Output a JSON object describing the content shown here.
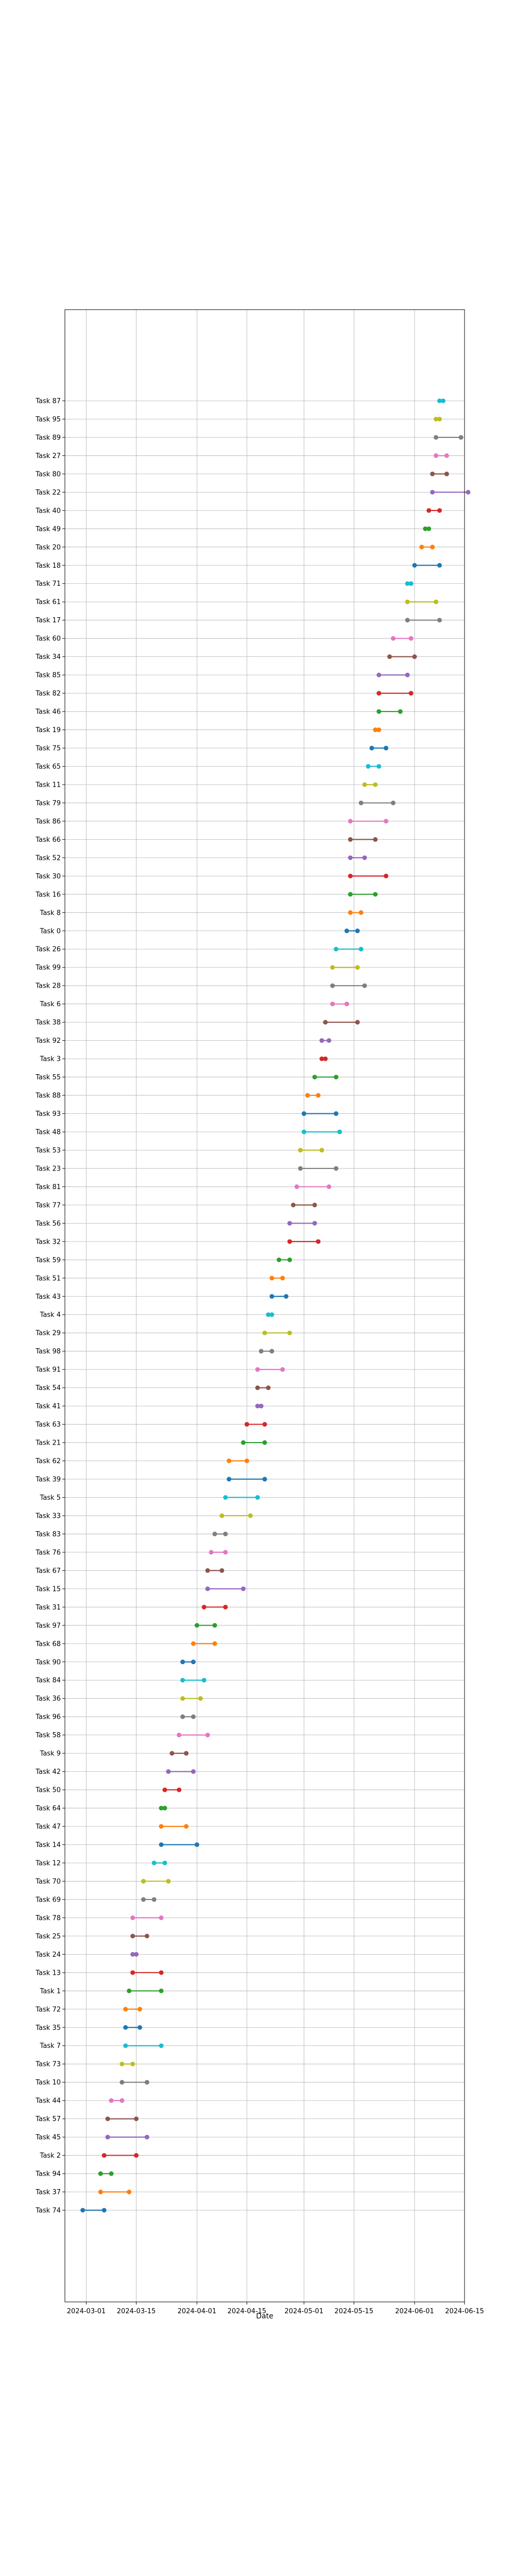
{
  "chart_data": {
    "type": "line",
    "xlabel": "Date",
    "title": "",
    "grid": true,
    "x_ticks": [
      "2024-03-01",
      "2024-03-15",
      "2024-04-01",
      "2024-04-15",
      "2024-05-01",
      "2024-05-15",
      "2024-06-01",
      "2024-06-15"
    ],
    "xlim": [
      "2024-02-24",
      "2024-06-15"
    ],
    "colors": [
      "#1f77b4",
      "#ff7f0e",
      "#2ca02c",
      "#d62728",
      "#9467bd",
      "#8c564b",
      "#e377c2",
      "#7f7f7f",
      "#bcbd22",
      "#17becf"
    ],
    "tasks": [
      {
        "name": "Task 74",
        "start": "2024-02-29",
        "end": "2024-03-06"
      },
      {
        "name": "Task 37",
        "start": "2024-03-05",
        "end": "2024-03-13"
      },
      {
        "name": "Task 94",
        "start": "2024-03-05",
        "end": "2024-03-08"
      },
      {
        "name": "Task 2",
        "start": "2024-03-06",
        "end": "2024-03-15"
      },
      {
        "name": "Task 45",
        "start": "2024-03-07",
        "end": "2024-03-18"
      },
      {
        "name": "Task 57",
        "start": "2024-03-07",
        "end": "2024-03-15"
      },
      {
        "name": "Task 44",
        "start": "2024-03-08",
        "end": "2024-03-11"
      },
      {
        "name": "Task 10",
        "start": "2024-03-11",
        "end": "2024-03-18"
      },
      {
        "name": "Task 73",
        "start": "2024-03-11",
        "end": "2024-03-14"
      },
      {
        "name": "Task 7",
        "start": "2024-03-12",
        "end": "2024-03-22"
      },
      {
        "name": "Task 35",
        "start": "2024-03-12",
        "end": "2024-03-16"
      },
      {
        "name": "Task 72",
        "start": "2024-03-12",
        "end": "2024-03-16"
      },
      {
        "name": "Task 1",
        "start": "2024-03-13",
        "end": "2024-03-22"
      },
      {
        "name": "Task 13",
        "start": "2024-03-14",
        "end": "2024-03-22"
      },
      {
        "name": "Task 24",
        "start": "2024-03-14",
        "end": "2024-03-15"
      },
      {
        "name": "Task 25",
        "start": "2024-03-14",
        "end": "2024-03-18"
      },
      {
        "name": "Task 78",
        "start": "2024-03-14",
        "end": "2024-03-22"
      },
      {
        "name": "Task 69",
        "start": "2024-03-17",
        "end": "2024-03-20"
      },
      {
        "name": "Task 70",
        "start": "2024-03-17",
        "end": "2024-03-24"
      },
      {
        "name": "Task 12",
        "start": "2024-03-20",
        "end": "2024-03-23"
      },
      {
        "name": "Task 14",
        "start": "2024-03-22",
        "end": "2024-04-01"
      },
      {
        "name": "Task 47",
        "start": "2024-03-22",
        "end": "2024-03-29"
      },
      {
        "name": "Task 64",
        "start": "2024-03-22",
        "end": "2024-03-23"
      },
      {
        "name": "Task 50",
        "start": "2024-03-23",
        "end": "2024-03-27"
      },
      {
        "name": "Task 42",
        "start": "2024-03-24",
        "end": "2024-03-31"
      },
      {
        "name": "Task 9",
        "start": "2024-03-25",
        "end": "2024-03-29"
      },
      {
        "name": "Task 58",
        "start": "2024-03-27",
        "end": "2024-04-04"
      },
      {
        "name": "Task 96",
        "start": "2024-03-28",
        "end": "2024-03-31"
      },
      {
        "name": "Task 36",
        "start": "2024-03-28",
        "end": "2024-04-02"
      },
      {
        "name": "Task 84",
        "start": "2024-03-28",
        "end": "2024-04-03"
      },
      {
        "name": "Task 90",
        "start": "2024-03-28",
        "end": "2024-03-31"
      },
      {
        "name": "Task 68",
        "start": "2024-03-31",
        "end": "2024-04-06"
      },
      {
        "name": "Task 97",
        "start": "2024-04-01",
        "end": "2024-04-06"
      },
      {
        "name": "Task 31",
        "start": "2024-04-03",
        "end": "2024-04-09"
      },
      {
        "name": "Task 15",
        "start": "2024-04-04",
        "end": "2024-04-14"
      },
      {
        "name": "Task 67",
        "start": "2024-04-04",
        "end": "2024-04-08"
      },
      {
        "name": "Task 76",
        "start": "2024-04-05",
        "end": "2024-04-09"
      },
      {
        "name": "Task 83",
        "start": "2024-04-06",
        "end": "2024-04-09"
      },
      {
        "name": "Task 33",
        "start": "2024-04-08",
        "end": "2024-04-16"
      },
      {
        "name": "Task 5",
        "start": "2024-04-09",
        "end": "2024-04-18"
      },
      {
        "name": "Task 39",
        "start": "2024-04-10",
        "end": "2024-04-20"
      },
      {
        "name": "Task 62",
        "start": "2024-04-10",
        "end": "2024-04-15"
      },
      {
        "name": "Task 21",
        "start": "2024-04-14",
        "end": "2024-04-20"
      },
      {
        "name": "Task 63",
        "start": "2024-04-15",
        "end": "2024-04-20"
      },
      {
        "name": "Task 41",
        "start": "2024-04-18",
        "end": "2024-04-19"
      },
      {
        "name": "Task 54",
        "start": "2024-04-18",
        "end": "2024-04-21"
      },
      {
        "name": "Task 91",
        "start": "2024-04-18",
        "end": "2024-04-25"
      },
      {
        "name": "Task 98",
        "start": "2024-04-19",
        "end": "2024-04-22"
      },
      {
        "name": "Task 29",
        "start": "2024-04-20",
        "end": "2024-04-27"
      },
      {
        "name": "Task 4",
        "start": "2024-04-21",
        "end": "2024-04-22"
      },
      {
        "name": "Task 43",
        "start": "2024-04-22",
        "end": "2024-04-26"
      },
      {
        "name": "Task 51",
        "start": "2024-04-22",
        "end": "2024-04-25"
      },
      {
        "name": "Task 59",
        "start": "2024-04-24",
        "end": "2024-04-27"
      },
      {
        "name": "Task 32",
        "start": "2024-04-27",
        "end": "2024-05-05"
      },
      {
        "name": "Task 56",
        "start": "2024-04-27",
        "end": "2024-05-04"
      },
      {
        "name": "Task 77",
        "start": "2024-04-28",
        "end": "2024-05-04"
      },
      {
        "name": "Task 81",
        "start": "2024-04-29",
        "end": "2024-05-08"
      },
      {
        "name": "Task 23",
        "start": "2024-04-30",
        "end": "2024-05-10"
      },
      {
        "name": "Task 53",
        "start": "2024-04-30",
        "end": "2024-05-06"
      },
      {
        "name": "Task 48",
        "start": "2024-05-01",
        "end": "2024-05-11"
      },
      {
        "name": "Task 93",
        "start": "2024-05-01",
        "end": "2024-05-10"
      },
      {
        "name": "Task 88",
        "start": "2024-05-02",
        "end": "2024-05-05"
      },
      {
        "name": "Task 55",
        "start": "2024-05-04",
        "end": "2024-05-10"
      },
      {
        "name": "Task 3",
        "start": "2024-05-06",
        "end": "2024-05-07"
      },
      {
        "name": "Task 92",
        "start": "2024-05-06",
        "end": "2024-05-08"
      },
      {
        "name": "Task 38",
        "start": "2024-05-07",
        "end": "2024-05-16"
      },
      {
        "name": "Task 6",
        "start": "2024-05-09",
        "end": "2024-05-13"
      },
      {
        "name": "Task 28",
        "start": "2024-05-09",
        "end": "2024-05-18"
      },
      {
        "name": "Task 99",
        "start": "2024-05-09",
        "end": "2024-05-16"
      },
      {
        "name": "Task 26",
        "start": "2024-05-10",
        "end": "2024-05-17"
      },
      {
        "name": "Task 0",
        "start": "2024-05-13",
        "end": "2024-05-16"
      },
      {
        "name": "Task 8",
        "start": "2024-05-14",
        "end": "2024-05-17"
      },
      {
        "name": "Task 16",
        "start": "2024-05-14",
        "end": "2024-05-21"
      },
      {
        "name": "Task 30",
        "start": "2024-05-14",
        "end": "2024-05-24"
      },
      {
        "name": "Task 52",
        "start": "2024-05-14",
        "end": "2024-05-18"
      },
      {
        "name": "Task 66",
        "start": "2024-05-14",
        "end": "2024-05-21"
      },
      {
        "name": "Task 86",
        "start": "2024-05-14",
        "end": "2024-05-24"
      },
      {
        "name": "Task 79",
        "start": "2024-05-17",
        "end": "2024-05-26"
      },
      {
        "name": "Task 11",
        "start": "2024-05-18",
        "end": "2024-05-21"
      },
      {
        "name": "Task 65",
        "start": "2024-05-19",
        "end": "2024-05-22"
      },
      {
        "name": "Task 75",
        "start": "2024-05-20",
        "end": "2024-05-24"
      },
      {
        "name": "Task 19",
        "start": "2024-05-21",
        "end": "2024-05-22"
      },
      {
        "name": "Task 46",
        "start": "2024-05-22",
        "end": "2024-05-28"
      },
      {
        "name": "Task 82",
        "start": "2024-05-22",
        "end": "2024-05-31"
      },
      {
        "name": "Task 85",
        "start": "2024-05-22",
        "end": "2024-05-30"
      },
      {
        "name": "Task 34",
        "start": "2024-05-25",
        "end": "2024-06-01"
      },
      {
        "name": "Task 60",
        "start": "2024-05-26",
        "end": "2024-05-31"
      },
      {
        "name": "Task 17",
        "start": "2024-05-30",
        "end": "2024-06-08"
      },
      {
        "name": "Task 61",
        "start": "2024-05-30",
        "end": "2024-06-07"
      },
      {
        "name": "Task 71",
        "start": "2024-05-30",
        "end": "2024-05-31"
      },
      {
        "name": "Task 18",
        "start": "2024-06-01",
        "end": "2024-06-08"
      },
      {
        "name": "Task 20",
        "start": "2024-06-03",
        "end": "2024-06-06"
      },
      {
        "name": "Task 49",
        "start": "2024-06-04",
        "end": "2024-06-05"
      },
      {
        "name": "Task 40",
        "start": "2024-06-05",
        "end": "2024-06-08"
      },
      {
        "name": "Task 22",
        "start": "2024-06-06",
        "end": "2024-06-16"
      },
      {
        "name": "Task 80",
        "start": "2024-06-06",
        "end": "2024-06-10"
      },
      {
        "name": "Task 27",
        "start": "2024-06-07",
        "end": "2024-06-10"
      },
      {
        "name": "Task 89",
        "start": "2024-06-07",
        "end": "2024-06-14"
      },
      {
        "name": "Task 95",
        "start": "2024-06-07",
        "end": "2024-06-08"
      },
      {
        "name": "Task 87",
        "start": "2024-06-08",
        "end": "2024-06-09"
      }
    ]
  }
}
